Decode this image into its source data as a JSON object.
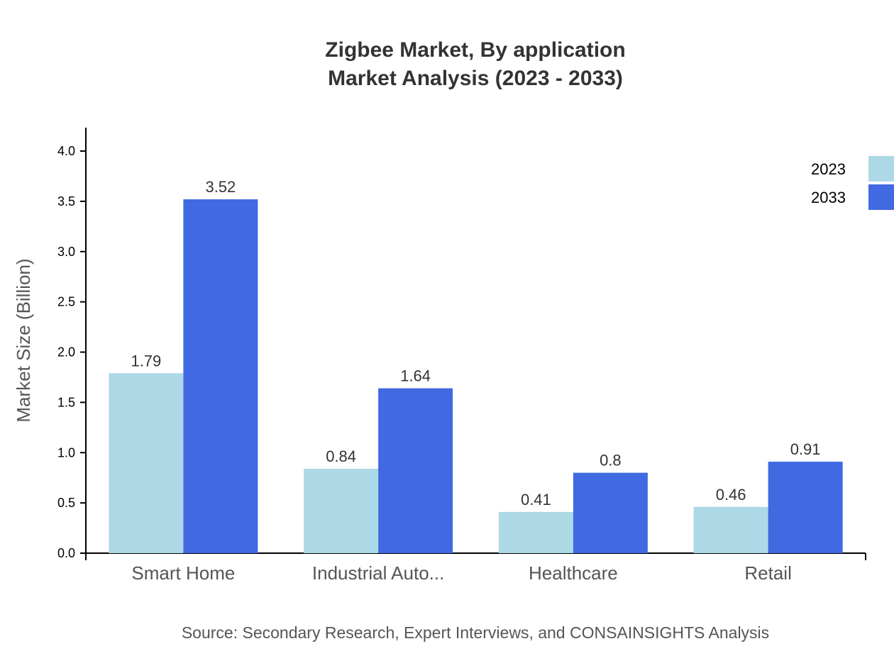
{
  "chart_data": {
    "type": "bar",
    "title": "Zigbee Market, By application",
    "subtitle": "Market Analysis (2023 - 2033)",
    "xlabel": "",
    "ylabel": "Market Size (Billion)",
    "ylim": [
      0,
      4.2
    ],
    "yticks": [
      "0.0",
      "0.5",
      "1.0",
      "1.5",
      "2.0",
      "2.5",
      "3.0",
      "3.5",
      "4.0"
    ],
    "grid": false,
    "legend_position": "top-right",
    "categories": [
      "Smart Home",
      "Industrial Auto...",
      "Healthcare",
      "Retail"
    ],
    "series": [
      {
        "name": "2023",
        "color": "#add8e6",
        "values": [
          1.79,
          0.84,
          0.41,
          0.46
        ],
        "labels": [
          "1.79",
          "0.84",
          "0.41",
          "0.46"
        ]
      },
      {
        "name": "2033",
        "color": "#4169e1",
        "values": [
          3.52,
          1.64,
          0.8,
          0.91
        ],
        "labels": [
          "3.52",
          "1.64",
          "0.8",
          "0.91"
        ]
      }
    ],
    "source": "Source: Secondary Research, Expert Interviews, and CONSAINSIGHTS Analysis"
  }
}
